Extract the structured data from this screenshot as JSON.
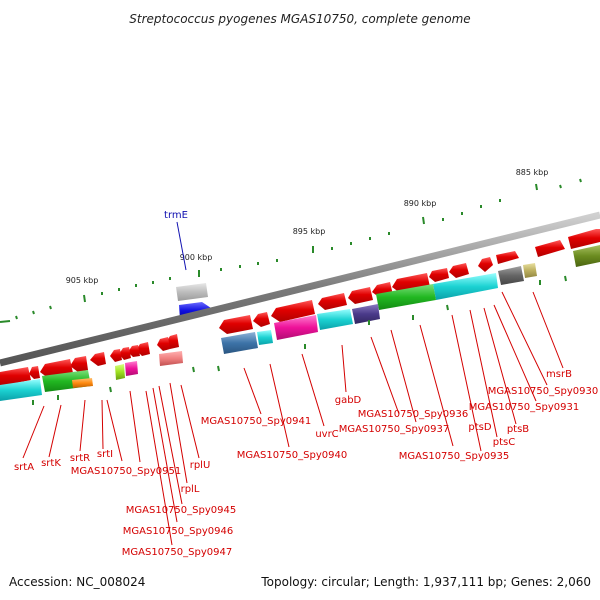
{
  "title": "Streptococcus pyogenes MGAS10750, complete genome",
  "footer": {
    "accession": "Accession: NC_008024",
    "summary": "Topology: circular; Length: 1,937,111 bp; Genes: 2,060"
  },
  "scale_labels": [
    "885 kbp",
    "890 kbp",
    "895 kbp",
    "900 kbp",
    "905 kbp"
  ],
  "colors": {
    "gene_forward": "#e00000",
    "label_red": "#d40000",
    "label_blue": "#1010b0",
    "backbone": "#888888"
  },
  "gene_labels": {
    "trmE": "trmE",
    "msrB": "msrB",
    "spy0930": "MGAS10750_Spy0930",
    "spy0931": "MGAS10750_Spy0931",
    "ptsB": "ptsB",
    "ptsC": "ptsC",
    "ptsD": "ptsD",
    "spy0935": "MGAS10750_Spy0935",
    "spy0936": "MGAS10750_Spy0936",
    "spy0937": "MGAS10750_Spy0937",
    "gabD": "gabD",
    "uvrC": "uvrC",
    "spy0940": "MGAS10750_Spy0940",
    "spy0941": "MGAS10750_Spy0941",
    "rplU": "rplU",
    "rplL": "rplL",
    "spy0945": "MGAS10750_Spy0945",
    "spy0946": "MGAS10750_Spy0946",
    "spy0947": "MGAS10750_Spy0947",
    "spy0951": "MGAS10750_Spy0951",
    "srtI": "srtI",
    "srtR": "srtR",
    "srtK": "srtK",
    "srtA": "srtA"
  }
}
